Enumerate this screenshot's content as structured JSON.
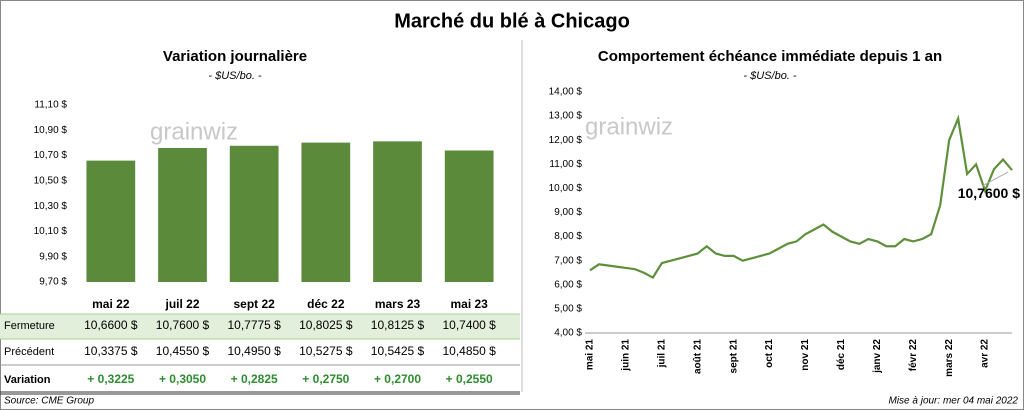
{
  "title": "Marché du blé à Chicago",
  "watermark": "grainwiz",
  "chart_data": [
    {
      "type": "bar",
      "title": "Variation journalière",
      "subtitle": "- $US/bo. -",
      "categories": [
        "mai 22",
        "juil 22",
        "sept 22",
        "déc 22",
        "mars 23",
        "mai 23"
      ],
      "values": [
        10.66,
        10.76,
        10.7775,
        10.8025,
        10.8125,
        10.74
      ],
      "color": "#5a8a3a",
      "grid": false,
      "ylim": [
        9.7,
        11.1
      ],
      "yticks": [
        {
          "value": 9.7,
          "label": "9,70 $"
        },
        {
          "value": 9.9,
          "label": "9,90 $"
        },
        {
          "value": 10.1,
          "label": "10,10 $"
        },
        {
          "value": 10.3,
          "label": "10,30 $"
        },
        {
          "value": 10.5,
          "label": "10,50 $"
        },
        {
          "value": 10.7,
          "label": "10,70 $"
        },
        {
          "value": 10.9,
          "label": "10,90 $"
        },
        {
          "value": 11.1,
          "label": "11,10 $"
        }
      ]
    },
    {
      "type": "line",
      "title": "Comportement échéance immédiate depuis 1 an",
      "subtitle": "- $US/bo. -",
      "categories": [
        "mai 21",
        null,
        null,
        null,
        "juin 21",
        null,
        null,
        null,
        "juil 21",
        null,
        null,
        null,
        "août 21",
        null,
        null,
        null,
        "sept 21",
        null,
        null,
        null,
        "oct 21",
        null,
        null,
        null,
        "nov 21",
        null,
        null,
        null,
        "déc 21",
        null,
        null,
        null,
        "janv 22",
        null,
        null,
        null,
        "févr 22",
        null,
        null,
        null,
        "mars 22",
        null,
        null,
        null,
        "avr 22",
        null,
        null,
        null
      ],
      "values": [
        6.6,
        6.85,
        6.8,
        6.75,
        6.7,
        6.65,
        6.5,
        6.3,
        6.9,
        7.0,
        7.1,
        7.2,
        7.3,
        7.6,
        7.3,
        7.2,
        7.2,
        7.0,
        7.1,
        7.2,
        7.3,
        7.5,
        7.7,
        7.8,
        8.1,
        8.3,
        8.5,
        8.2,
        8.0,
        7.8,
        7.7,
        7.9,
        7.8,
        7.6,
        7.6,
        7.9,
        7.8,
        7.9,
        8.1,
        9.3,
        12.0,
        12.9,
        10.6,
        11.0,
        9.9,
        10.8,
        11.2,
        10.76
      ],
      "value_labels": [
        null,
        null,
        null,
        null,
        null,
        null,
        null,
        null,
        null,
        null,
        null,
        null,
        null,
        null,
        null,
        null,
        null,
        null,
        null,
        null,
        null,
        null,
        null,
        null,
        null,
        null,
        null,
        null,
        null,
        null,
        null,
        null,
        null,
        null,
        null,
        null,
        null,
        null,
        null,
        null,
        null,
        null,
        null,
        null,
        null,
        null,
        null,
        "10,7600 $"
      ],
      "color": "#5e8f3b",
      "grid": false,
      "ylim": [
        4,
        14
      ],
      "yticks": [
        {
          "value": 4,
          "label": "4,00 $"
        },
        {
          "value": 5,
          "label": "5,00 $"
        },
        {
          "value": 6,
          "label": "6,00 $"
        },
        {
          "value": 7,
          "label": "7,00 $"
        },
        {
          "value": 8,
          "label": "8,00 $"
        },
        {
          "value": 9,
          "label": "9,00 $"
        },
        {
          "value": 10,
          "label": "10,00 $"
        },
        {
          "value": 11,
          "label": "11,00 $"
        },
        {
          "value": 12,
          "label": "12,00 $"
        },
        {
          "value": 13,
          "label": "13,00 $"
        },
        {
          "value": 14,
          "label": "14,00 $"
        }
      ]
    }
  ],
  "table": {
    "rows": [
      {
        "label": "Fermeture",
        "cells": [
          "10,6600 $",
          "10,7600 $",
          "10,7775 $",
          "10,8025 $",
          "10,8125 $",
          "10,7400 $"
        ]
      },
      {
        "label": "Précédent",
        "cells": [
          "10,3375 $",
          "10,4550 $",
          "10,4950 $",
          "10,5275 $",
          "10,5425 $",
          "10,4850 $"
        ]
      },
      {
        "label": "Variation",
        "cells": [
          "+ 0,3225",
          "+ 0,3050",
          "+ 0,2825",
          "+ 0,2750",
          "+ 0,2700",
          "+ 0,2550"
        ]
      }
    ]
  },
  "source": "Source: CME Group",
  "updated": "Mise à jour: mer 04 mai 2022"
}
